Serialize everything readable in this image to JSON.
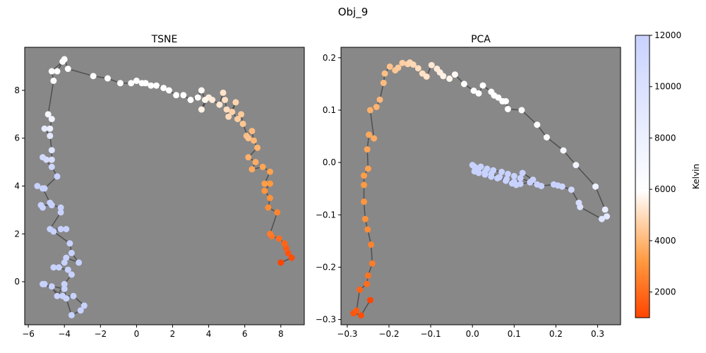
{
  "figure": {
    "title": "Obj_9"
  },
  "colorbar": {
    "label": "Kelvin",
    "range": [
      1000,
      12000
    ],
    "ticks": [
      "2000",
      "4000",
      "6000",
      "8000",
      "10000",
      "12000"
    ],
    "tick_values": [
      2000,
      4000,
      6000,
      8000,
      10000,
      12000
    ]
  },
  "chart_data": [
    {
      "type": "scatter",
      "title": "TSNE",
      "xlabel": "",
      "ylabel": "",
      "xlim": [
        -6.2,
        9.3
      ],
      "ylim": [
        -1.8,
        9.8
      ],
      "xticks": [
        "−6",
        "−4",
        "−2",
        "0",
        "2",
        "4",
        "6",
        "8"
      ],
      "xtick_values": [
        -6,
        -4,
        -2,
        0,
        2,
        4,
        6,
        8
      ],
      "yticks": [
        "0",
        "2",
        "4",
        "6",
        "8"
      ],
      "ytick_values": [
        0,
        2,
        4,
        6,
        8
      ],
      "background": "#888888",
      "connected": true,
      "x": [
        8.0,
        8.6,
        8.4,
        8.3,
        8.2,
        7.9,
        7.5,
        7.4,
        7.8,
        7.3,
        7.4,
        7.1,
        7.4,
        7.1,
        7.4,
        7.0,
        6.4,
        6.6,
        6.2,
        6.7,
        6.5,
        6.4,
        6.1,
        6.2,
        5.9,
        5.8,
        5.6,
        5.3,
        5.5,
        5.1,
        5.0,
        4.9,
        4.8,
        4.6,
        4.2,
        4.0,
        3.6,
        3.8,
        3.6,
        3.4,
        3.0,
        2.6,
        2.2,
        1.8,
        1.5,
        1.1,
        0.8,
        0.5,
        0.3,
        0.0,
        -0.3,
        -0.9,
        -1.6,
        -2.4,
        -3.8,
        -4.0,
        -4.4,
        -4.1,
        -4.7,
        -4.6,
        -4.9,
        -4.7,
        -4.8,
        -5.1,
        -4.8,
        -4.7,
        -4.7,
        -5.0,
        -5.2,
        -4.7,
        -4.4,
        -5.1,
        -5.5,
        -5.2,
        -4.8,
        -5.2,
        -5.3,
        -4.7,
        -4.2,
        -4.2,
        -4.8,
        -4.2,
        -3.9,
        -4.6,
        -3.7,
        -3.6,
        -3.2,
        -3.9,
        -4.0,
        -4.3,
        -4.6,
        -3.8,
        -3.6,
        -4.0,
        -4.4,
        -4.7,
        -5.1,
        -4.1,
        -3.5,
        -2.9,
        -3.1,
        -3.6,
        -3.9,
        -4.0,
        -5.2
      ],
      "y": [
        0.8,
        1.0,
        1.2,
        1.4,
        1.6,
        1.8,
        1.9,
        2.0,
        2.9,
        3.1,
        3.5,
        3.8,
        4.1,
        4.1,
        4.6,
        4.8,
        4.7,
        5.0,
        5.2,
        5.6,
        5.9,
        6.3,
        6.1,
        6.0,
        6.6,
        7.0,
        6.8,
        7.1,
        7.5,
        6.9,
        7.2,
        7.6,
        7.9,
        7.4,
        7.6,
        7.7,
        7.2,
        7.6,
        8.0,
        7.7,
        7.6,
        7.8,
        7.8,
        8.0,
        8.1,
        8.2,
        8.2,
        8.3,
        8.3,
        8.4,
        8.3,
        8.3,
        8.5,
        8.6,
        8.9,
        9.3,
        8.8,
        9.2,
        8.8,
        8.4,
        7.0,
        6.8,
        6.4,
        6.4,
        6.1,
        5.5,
        5.1,
        5.1,
        5.2,
        4.8,
        4.4,
        3.9,
        4.0,
        3.9,
        3.3,
        3.1,
        3.2,
        3.2,
        3.1,
        2.9,
        2.2,
        2.2,
        2.2,
        2.1,
        1.6,
        1.2,
        0.8,
        1.0,
        0.8,
        0.6,
        0.6,
        0.5,
        0.3,
        -0.1,
        -0.6,
        -0.2,
        -0.1,
        -0.6,
        -0.6,
        -1.0,
        -1.2,
        -1.4,
        -0.7,
        -0.3,
        -0.1
      ],
      "color_values": [
        1000,
        1200,
        1400,
        1600,
        1800,
        2000,
        2200,
        2400,
        2600,
        2800,
        3000,
        3100,
        3200,
        3300,
        3400,
        3500,
        3600,
        3700,
        3800,
        3900,
        4000,
        4100,
        4200,
        4300,
        4400,
        4500,
        4600,
        4700,
        4800,
        4900,
        5000,
        5100,
        5200,
        5300,
        5400,
        5500,
        5600,
        5700,
        5800,
        5900,
        6000,
        6000,
        6000,
        6000,
        6000,
        6000,
        6000,
        6000,
        6000,
        6000,
        6000,
        6000,
        6000,
        6000,
        6000,
        6100,
        6200,
        6300,
        6400,
        6500,
        7000,
        7500,
        8000,
        8500,
        9000,
        9500,
        10000,
        10500,
        11000,
        11500,
        12000,
        12000,
        12000,
        12000,
        12000,
        12000,
        12000,
        12000,
        12000,
        12000,
        12000,
        12000,
        12000,
        12000,
        12000,
        12000,
        12000,
        12000,
        12000,
        12000,
        12000,
        12000,
        12000,
        12000,
        12000,
        12000,
        12000,
        12000,
        12000,
        12000,
        12000,
        12000,
        12000,
        12000,
        12000
      ]
    },
    {
      "type": "scatter",
      "title": "PCA",
      "xlabel": "",
      "ylabel": "",
      "xlim": [
        -0.315,
        0.355
      ],
      "ylim": [
        -0.31,
        0.22
      ],
      "xticks": [
        "−0.3",
        "−0.2",
        "−0.1",
        "0.0",
        "0.1",
        "0.2",
        "0.3"
      ],
      "xtick_values": [
        -0.3,
        -0.2,
        -0.1,
        0.0,
        0.1,
        0.2,
        0.3
      ],
      "yticks": [
        "−0.3",
        "−0.2",
        "−0.1",
        "0.0",
        "0.1",
        "0.2"
      ],
      "ytick_values": [
        -0.3,
        -0.2,
        -0.1,
        0.0,
        0.1,
        0.2
      ],
      "background": "#888888",
      "connected": true,
      "x": [
        -0.245,
        -0.267,
        -0.285,
        -0.278,
        -0.27,
        -0.253,
        -0.25,
        -0.24,
        -0.243,
        -0.251,
        -0.257,
        -0.26,
        -0.26,
        -0.26,
        -0.25,
        -0.252,
        -0.248,
        -0.236,
        -0.245,
        -0.23,
        -0.222,
        -0.213,
        -0.21,
        -0.198,
        -0.185,
        -0.178,
        -0.168,
        -0.155,
        -0.15,
        -0.142,
        -0.13,
        -0.12,
        -0.11,
        -0.098,
        -0.085,
        -0.078,
        -0.07,
        -0.055,
        -0.042,
        -0.02,
        0.003,
        0.015,
        0.025,
        0.045,
        0.052,
        0.062,
        0.072,
        0.08,
        0.085,
        0.118,
        0.155,
        0.178,
        0.218,
        0.248,
        0.295,
        0.318,
        0.322,
        0.31,
        0.258,
        0.255,
        0.237,
        0.215,
        0.205,
        0.195,
        0.165,
        0.145,
        0.12,
        0.105,
        0.095,
        0.08,
        0.06,
        0.045,
        0.03,
        0.015,
        0.005,
        0.0,
        0.02,
        0.035,
        0.05,
        0.07,
        0.085,
        0.1,
        0.115,
        0.155,
        0.138,
        0.115,
        0.1,
        0.082,
        0.065,
        0.045,
        0.03,
        0.015,
        0.005
      ],
      "y": [
        -0.263,
        -0.292,
        -0.288,
        -0.283,
        -0.243,
        -0.232,
        -0.216,
        -0.193,
        -0.157,
        -0.128,
        -0.108,
        -0.075,
        -0.043,
        -0.025,
        -0.012,
        0.025,
        0.053,
        0.046,
        0.1,
        0.106,
        0.12,
        0.152,
        0.17,
        0.183,
        0.176,
        0.181,
        0.19,
        0.188,
        0.191,
        0.187,
        0.18,
        0.17,
        0.164,
        0.186,
        0.179,
        0.172,
        0.165,
        0.16,
        0.168,
        0.15,
        0.137,
        0.132,
        0.147,
        0.135,
        0.128,
        0.124,
        0.117,
        0.117,
        0.102,
        0.1,
        0.072,
        0.048,
        0.023,
        -0.005,
        -0.046,
        -0.09,
        -0.103,
        -0.108,
        -0.085,
        -0.077,
        -0.052,
        -0.046,
        -0.044,
        -0.042,
        -0.045,
        -0.033,
        -0.02,
        -0.043,
        -0.04,
        -0.035,
        -0.03,
        -0.027,
        -0.023,
        -0.02,
        -0.017,
        -0.005,
        -0.008,
        -0.012,
        -0.015,
        -0.018,
        -0.022,
        -0.026,
        -0.03,
        -0.042,
        -0.038,
        -0.041,
        -0.037,
        -0.032,
        -0.028,
        -0.022,
        -0.018,
        -0.012,
        -0.008
      ],
      "color_values": [
        1000,
        1200,
        1400,
        1600,
        1800,
        2000,
        2200,
        2400,
        2600,
        2800,
        3000,
        3100,
        3200,
        3300,
        3400,
        3500,
        3600,
        3700,
        3800,
        3900,
        4000,
        4100,
        4200,
        4300,
        4400,
        4500,
        4600,
        4700,
        4800,
        4900,
        5000,
        5100,
        5200,
        5300,
        5400,
        5500,
        5600,
        5700,
        5800,
        5900,
        6000,
        6000,
        6000,
        6000,
        6000,
        6000,
        6000,
        6000,
        6000,
        6100,
        6300,
        6500,
        7000,
        7500,
        8000,
        8500,
        9000,
        9500,
        10000,
        10500,
        11000,
        11500,
        12000,
        12000,
        12000,
        12000,
        12000,
        12000,
        12000,
        12000,
        12000,
        12000,
        12000,
        12000,
        12000,
        12000,
        12000,
        12000,
        12000,
        12000,
        12000,
        12000,
        12000,
        12000,
        12000,
        12000,
        12000,
        12000,
        12000,
        12000,
        12000,
        12000,
        12000
      ]
    }
  ]
}
